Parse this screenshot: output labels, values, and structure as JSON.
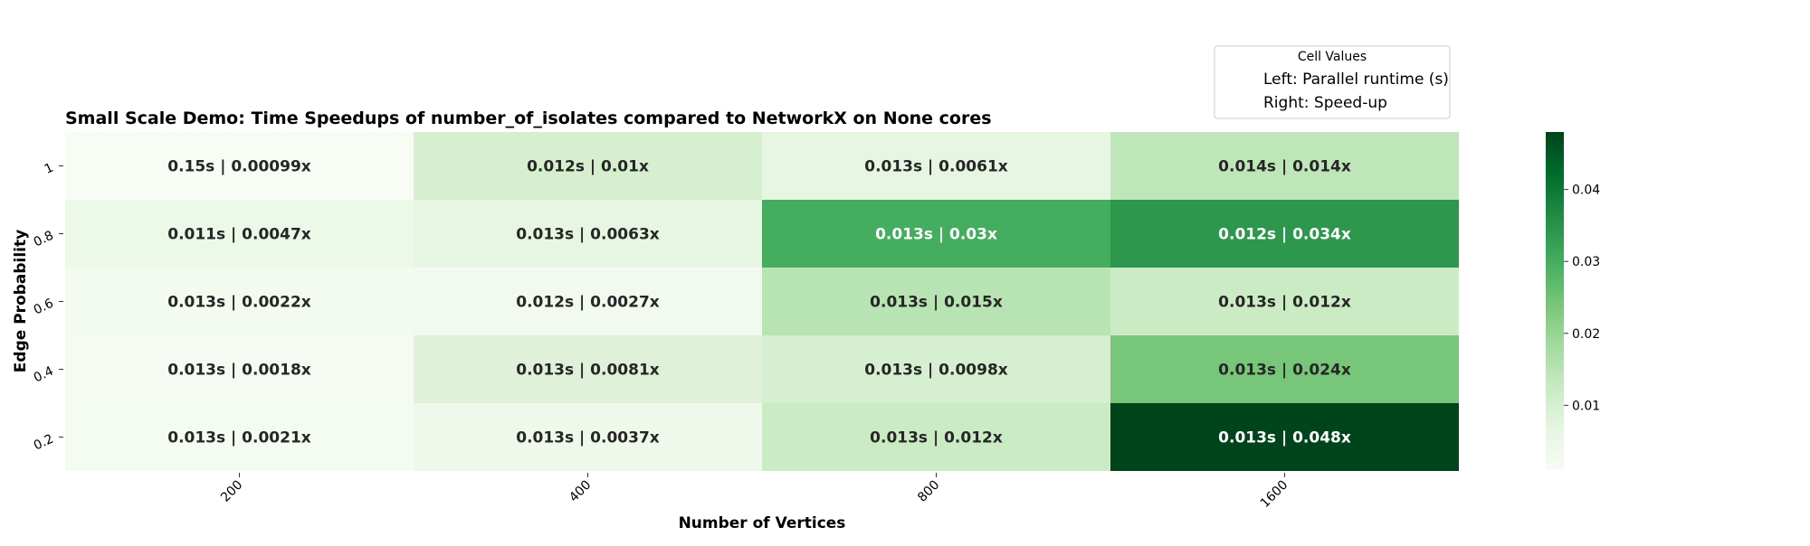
{
  "chart_data": {
    "type": "heatmap",
    "title": "Small Scale Demo: Time Speedups of number_of_isolates compared to NetworkX on None cores",
    "xlabel": "Number of Vertices",
    "ylabel": "Edge Probability",
    "x": [
      "200",
      "400",
      "800",
      "1600"
    ],
    "y": [
      "1",
      "0.8",
      "0.6",
      "0.4",
      "0.2"
    ],
    "cells": [
      [
        {
          "runtime": "0.15s",
          "speedup": "0.00099x",
          "value": 0.00099
        },
        {
          "runtime": "0.012s",
          "speedup": "0.01x",
          "value": 0.01
        },
        {
          "runtime": "0.013s",
          "speedup": "0.0061x",
          "value": 0.0061
        },
        {
          "runtime": "0.014s",
          "speedup": "0.014x",
          "value": 0.014
        }
      ],
      [
        {
          "runtime": "0.011s",
          "speedup": "0.0047x",
          "value": 0.0047
        },
        {
          "runtime": "0.013s",
          "speedup": "0.0063x",
          "value": 0.0063
        },
        {
          "runtime": "0.013s",
          "speedup": "0.03x",
          "value": 0.03
        },
        {
          "runtime": "0.012s",
          "speedup": "0.034x",
          "value": 0.034
        }
      ],
      [
        {
          "runtime": "0.013s",
          "speedup": "0.0022x",
          "value": 0.0022
        },
        {
          "runtime": "0.012s",
          "speedup": "0.0027x",
          "value": 0.0027
        },
        {
          "runtime": "0.013s",
          "speedup": "0.015x",
          "value": 0.015
        },
        {
          "runtime": "0.013s",
          "speedup": "0.012x",
          "value": 0.012
        }
      ],
      [
        {
          "runtime": "0.013s",
          "speedup": "0.0018x",
          "value": 0.0018
        },
        {
          "runtime": "0.013s",
          "speedup": "0.0081x",
          "value": 0.0081
        },
        {
          "runtime": "0.013s",
          "speedup": "0.0098x",
          "value": 0.0098
        },
        {
          "runtime": "0.013s",
          "speedup": "0.024x",
          "value": 0.024
        }
      ],
      [
        {
          "runtime": "0.013s",
          "speedup": "0.0021x",
          "value": 0.0021
        },
        {
          "runtime": "0.013s",
          "speedup": "0.0037x",
          "value": 0.0037
        },
        {
          "runtime": "0.013s",
          "speedup": "0.012x",
          "value": 0.012
        },
        {
          "runtime": "0.013s",
          "speedup": "0.048x",
          "value": 0.048
        }
      ]
    ],
    "colorbar": {
      "min": 0.00099,
      "max": 0.048,
      "ticks": [
        0.01,
        0.02,
        0.03,
        0.04
      ],
      "tick_labels": [
        "0.01",
        "0.02",
        "0.03",
        "0.04"
      ],
      "colormap": "Greens",
      "colormap_stops": [
        "#f7fcf5",
        "#e5f5e0",
        "#c7e9c0",
        "#a1d99b",
        "#74c476",
        "#41ab5d",
        "#238b45",
        "#006d2c",
        "#00441b"
      ]
    },
    "legend": {
      "title": "Cell Values",
      "placement": "top-right",
      "entries": [
        "Left: Parallel runtime (s)",
        "Right: Speed-up"
      ]
    },
    "grid": false
  }
}
